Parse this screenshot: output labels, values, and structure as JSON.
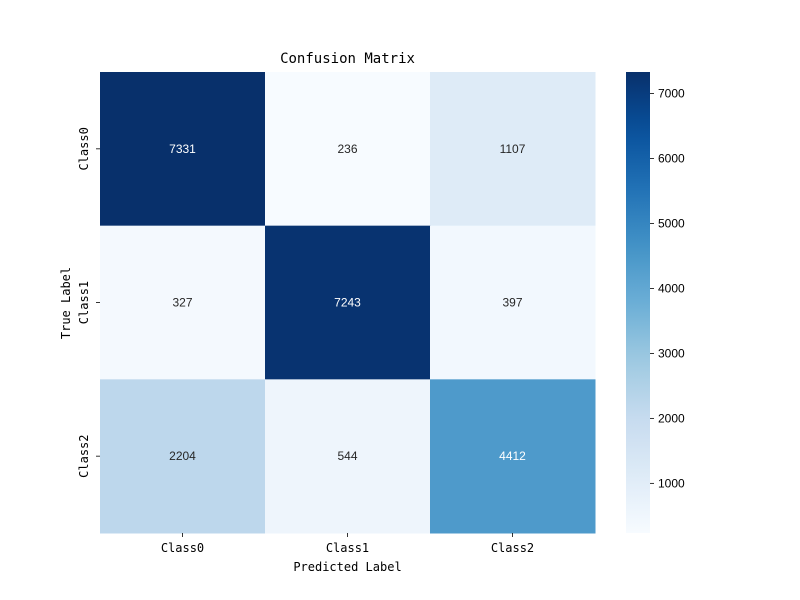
{
  "chart_data": {
    "type": "heatmap",
    "title": "Confusion Matrix",
    "xlabel": "Predicted Label",
    "ylabel": "True Label",
    "x_categories": [
      "Class0",
      "Class1",
      "Class2"
    ],
    "y_categories": [
      "Class0",
      "Class1",
      "Class2"
    ],
    "values": [
      [
        7331,
        236,
        1107
      ],
      [
        327,
        7243,
        397
      ],
      [
        2204,
        544,
        4412
      ]
    ],
    "colormap": "Blues",
    "color_range": [
      236,
      7331
    ],
    "colorbar_ticks": [
      1000,
      2000,
      3000,
      4000,
      5000,
      6000,
      7000
    ],
    "colors": {
      "low": "#f7fbff",
      "high": "#08306b"
    }
  }
}
